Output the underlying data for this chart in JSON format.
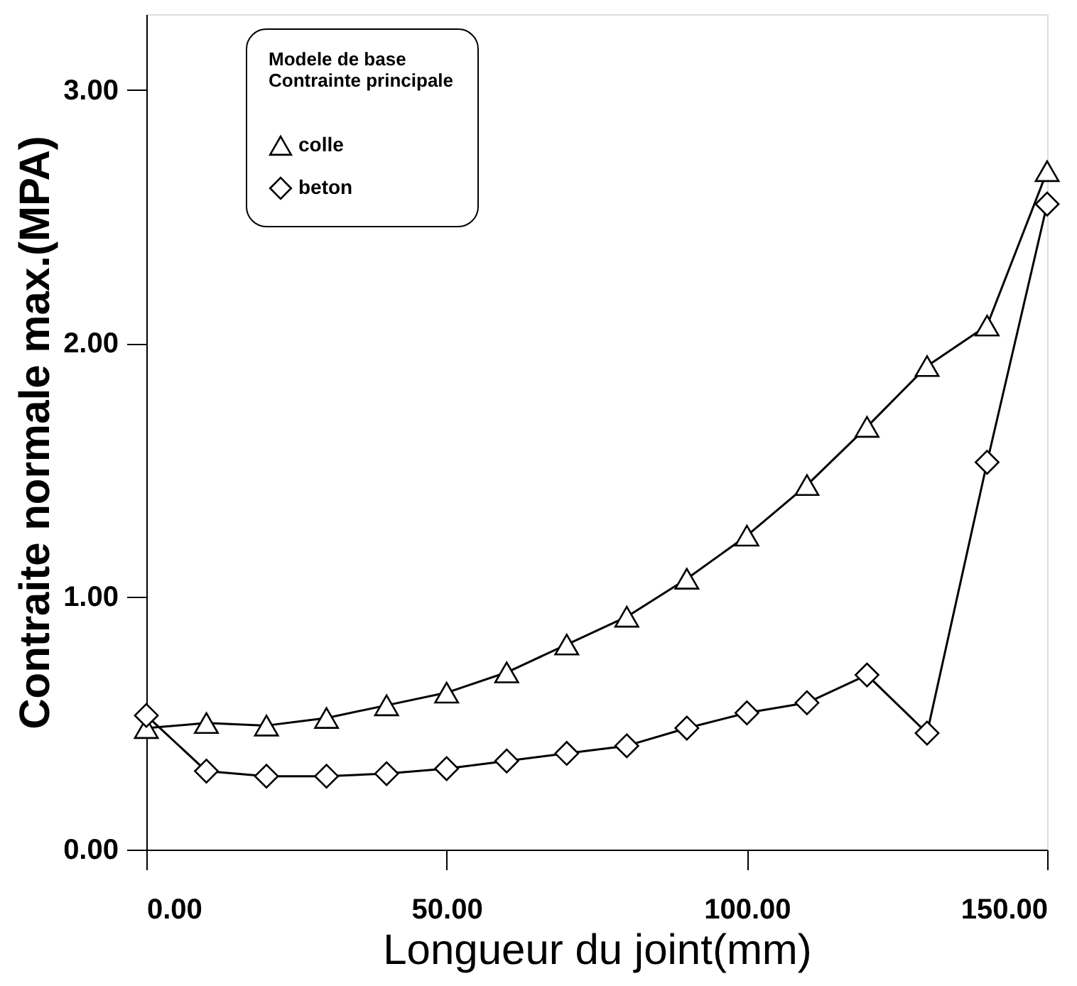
{
  "chart_data": {
    "type": "line",
    "xlabel": "Longueur du joint(mm)",
    "ylabel": "Contraite  normale max.(MPA)",
    "legend_title": "Modele de base\nContrainte principale",
    "legend": "top left",
    "line_style": "solid",
    "grid": false,
    "x": [
      0,
      10,
      20,
      30,
      40,
      50,
      60,
      70,
      80,
      90,
      100,
      110,
      120,
      130,
      140,
      150
    ],
    "xlim": [
      0,
      150
    ],
    "ylim": [
      0,
      3.3
    ],
    "xticks": [
      {
        "value": 0,
        "label": "0.00"
      },
      {
        "value": 50,
        "label": "50.00"
      },
      {
        "value": 100,
        "label": "100.00"
      },
      {
        "value": 150,
        "label": "150.00"
      }
    ],
    "yticks": [
      {
        "value": 0,
        "label": "0.00"
      },
      {
        "value": 1,
        "label": "1.00"
      },
      {
        "value": 2,
        "label": "2.00"
      },
      {
        "value": 3,
        "label": "3.00"
      }
    ],
    "series": [
      {
        "name": "colle",
        "color": "#000000",
        "marker": "triangle",
        "values": [
          0.48,
          0.5,
          0.49,
          0.52,
          0.57,
          0.62,
          0.7,
          0.81,
          0.92,
          1.07,
          1.24,
          1.44,
          1.67,
          1.91,
          2.07,
          2.68
        ]
      },
      {
        "name": "beton",
        "color": "#000000",
        "marker": "diamond",
        "values": [
          0.53,
          0.31,
          0.29,
          0.29,
          0.3,
          0.32,
          0.35,
          0.38,
          0.41,
          0.48,
          0.54,
          0.58,
          0.69,
          0.46,
          1.53,
          2.55
        ]
      }
    ]
  }
}
